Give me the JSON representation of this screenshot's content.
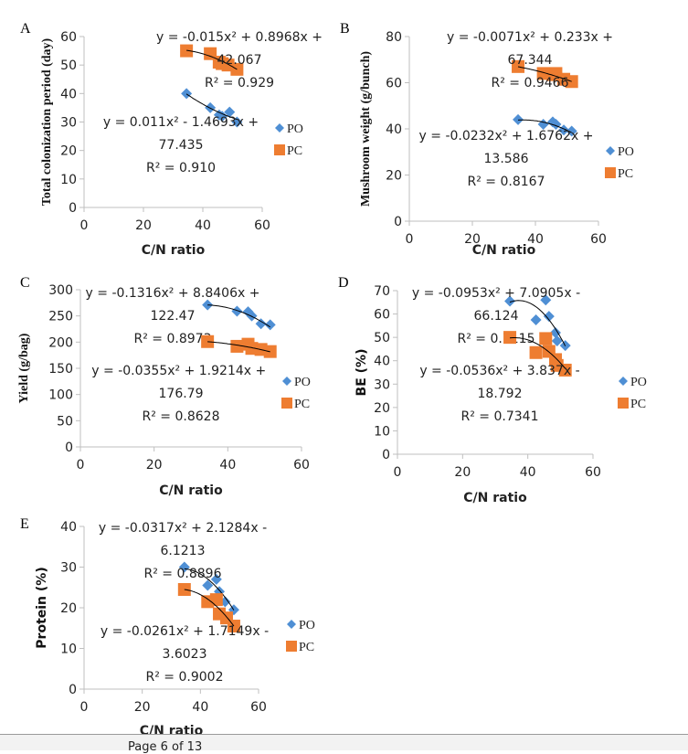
{
  "colors": {
    "PO": "#4f8fd4",
    "PC": "#ee7d31",
    "axis": "#bfbfbf",
    "trendline": "#000000"
  },
  "footer": {
    "page_label": "Page 6 of 13"
  },
  "chart_data": [
    {
      "type": "scatter",
      "panel": "A",
      "xlabel": "C/N ratio",
      "ylabel": "Total colonization period (day)",
      "xlim": [
        0,
        60
      ],
      "ylim": [
        0,
        60
      ],
      "xticks": [
        0,
        20,
        40,
        60
      ],
      "yticks": [
        0,
        10,
        20,
        30,
        40,
        50,
        60
      ],
      "grid": false,
      "legend": "right",
      "series": [
        {
          "name": "PO",
          "marker": "diamond",
          "x": [
            34.5,
            42.5,
            45.5,
            46.5,
            49,
            51.5
          ],
          "y": [
            40,
            35,
            32.5,
            32,
            33.5,
            30
          ],
          "trend": {
            "coef": [
              0.011,
              -1.4693,
              77.435
            ],
            "label": [
              "y = 0.011x² - 1.4693x +",
              "77.435",
              "R² = 0.910"
            ]
          }
        },
        {
          "name": "PC",
          "marker": "square",
          "x": [
            34.5,
            42.5,
            45.5,
            46.5,
            48.5,
            51.5
          ],
          "y": [
            55,
            54,
            51,
            50.5,
            50,
            48.5
          ],
          "trend": {
            "coef": [
              -0.015,
              0.8968,
              42.067
            ],
            "label": [
              "y = -0.015x² + 0.8968x +",
              "42.067",
              "R² = 0.929"
            ]
          }
        }
      ]
    },
    {
      "type": "scatter",
      "panel": "B",
      "xlabel": "C/N ratio",
      "ylabel": "Mushroom weight (g/bunch)",
      "xlim": [
        0,
        60
      ],
      "ylim": [
        0,
        80
      ],
      "xticks": [
        0,
        20,
        40,
        60
      ],
      "yticks": [
        0,
        20,
        40,
        60,
        80
      ],
      "grid": false,
      "legend": "right",
      "series": [
        {
          "name": "PO",
          "marker": "diamond",
          "x": [
            34.5,
            42.5,
            45.5,
            46.5,
            49,
            51.5
          ],
          "y": [
            44,
            42,
            43,
            42,
            39.5,
            39
          ],
          "trend": {
            "coef": [
              -0.0232,
              1.6762,
              13.586
            ],
            "label": [
              "y = -0.0232x² + 1.6762x +",
              "13.586",
              "R² = 0.8167"
            ]
          }
        },
        {
          "name": "PC",
          "marker": "square",
          "x": [
            34.5,
            42.5,
            45.5,
            46.5,
            49,
            51.5
          ],
          "y": [
            67,
            64,
            63.5,
            64,
            61.5,
            60.5
          ],
          "trend": {
            "coef": [
              -0.0071,
              0.233,
              67.344
            ],
            "label": [
              "y = -0.0071x² + 0.233x +",
              "67.344",
              "R² = 0.9466"
            ]
          }
        }
      ]
    },
    {
      "type": "scatter",
      "panel": "C",
      "xlabel": "C/N ratio",
      "ylabel": "Yield (g/bag)",
      "xlim": [
        0,
        60
      ],
      "ylim": [
        0,
        300
      ],
      "xticks": [
        0,
        20,
        40,
        60
      ],
      "yticks": [
        0,
        50,
        100,
        150,
        200,
        250,
        300
      ],
      "grid": false,
      "legend": "right",
      "series": [
        {
          "name": "PO",
          "marker": "diamond",
          "x": [
            34.5,
            42.5,
            45.5,
            46.5,
            49,
            51.5
          ],
          "y": [
            271,
            259,
            258,
            250,
            235,
            233
          ],
          "trend": {
            "coef": [
              -0.1316,
              8.8406,
              122.47
            ],
            "label": [
              "y = -0.1316x² + 8.8406x +",
              "122.47",
              "R² = 0.8973"
            ]
          }
        },
        {
          "name": "PC",
          "marker": "square",
          "x": [
            34.5,
            42.5,
            45.5,
            46.5,
            49,
            51.5
          ],
          "y": [
            201,
            192,
            196,
            188,
            186,
            182
          ],
          "trend": {
            "coef": [
              -0.0355,
              1.9214,
              176.79
            ],
            "label": [
              "y = -0.0355x² + 1.9214x + 176.79",
              "R² = 0.8628"
            ]
          }
        }
      ]
    },
    {
      "type": "scatter",
      "panel": "D",
      "xlabel": "C/N ratio",
      "ylabel": "BE (%)",
      "xlim": [
        0,
        60
      ],
      "ylim": [
        0,
        70
      ],
      "xticks": [
        0,
        20,
        40,
        60
      ],
      "yticks": [
        0,
        10,
        20,
        30,
        40,
        50,
        60,
        70
      ],
      "grid": false,
      "legend": "right",
      "series": [
        {
          "name": "PO",
          "marker": "diamond",
          "x": [
            34.5,
            42.5,
            45.5,
            46.5,
            48.5,
            49,
            51.5
          ],
          "y": [
            65.5,
            57.5,
            66,
            59,
            52,
            48.5,
            46.5
          ],
          "trend": {
            "coef": [
              -0.0953,
              7.0905,
              -66.124
            ],
            "label": [
              "y = -0.0953x² + 7.0905x -",
              "66.124",
              "R² = 0.7115"
            ]
          }
        },
        {
          "name": "PC",
          "marker": "square",
          "x": [
            34.5,
            42.5,
            45.5,
            46.5,
            48.5,
            49,
            51.5
          ],
          "y": [
            50,
            43.5,
            49.5,
            44,
            40.5,
            38,
            36
          ],
          "trend": {
            "coef": [
              -0.0536,
              3.837,
              -18.792
            ],
            "label": [
              "y = -0.0536x² + 3.837x -",
              "18.792",
              "R² = 0.7341"
            ]
          }
        }
      ]
    },
    {
      "type": "scatter",
      "panel": "E",
      "xlabel": "C/N ratio",
      "ylabel": "Protein (%)",
      "xlim": [
        0,
        60
      ],
      "ylim": [
        0,
        40
      ],
      "xticks": [
        0,
        20,
        40,
        60
      ],
      "yticks": [
        0,
        10,
        20,
        30,
        40
      ],
      "grid": false,
      "legend": "right",
      "series": [
        {
          "name": "PO",
          "marker": "diamond",
          "x": [
            34.5,
            42.5,
            45.5,
            46.5,
            48.5,
            51.5
          ],
          "y": [
            30,
            25.5,
            27,
            24,
            21.5,
            19.5
          ],
          "trend": {
            "coef": [
              -0.0317,
              2.1284,
              -6.1213
            ],
            "label": [
              "y = -0.0317x² + 2.1284x -",
              "6.1213",
              "R² = 0.8896"
            ]
          }
        },
        {
          "name": "PC",
          "marker": "square",
          "x": [
            34.5,
            42.5,
            45.5,
            46.5,
            49,
            51.5
          ],
          "y": [
            24.5,
            21.5,
            22,
            18.5,
            17.5,
            15.5
          ],
          "trend": {
            "coef": [
              -0.0261,
              1.7149,
              -3.6023
            ],
            "label": [
              "y = -0.0261x² + 1.7149x -",
              "3.6023",
              "R² = 0.9002"
            ]
          }
        }
      ]
    }
  ]
}
